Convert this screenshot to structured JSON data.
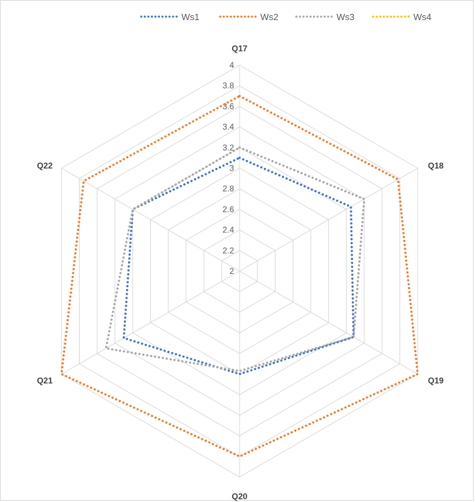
{
  "chart_data": {
    "type": "radar",
    "categories": [
      "Q17",
      "Q18",
      "Q19",
      "Q20",
      "Q21",
      "Q22"
    ],
    "rlim": [
      2,
      4
    ],
    "ticks": [
      "2",
      "2.2",
      "2.4",
      "2.6",
      "2.8",
      "3",
      "3.2",
      "3.4",
      "3.6",
      "3.8",
      "4"
    ],
    "tick_values": [
      2,
      2.2,
      2.4,
      2.6,
      2.8,
      3,
      3.2,
      3.4,
      3.6,
      3.8,
      4
    ],
    "legend_position": "top",
    "grid": true,
    "series": [
      {
        "name": "Ws1",
        "color": "#4472c4",
        "values": [
          3.1,
          3.25,
          3.28,
          3.0,
          3.3,
          3.2
        ]
      },
      {
        "name": "Ws2",
        "color": "#ed7d31",
        "values": [
          3.7,
          3.78,
          4.0,
          3.8,
          4.0,
          3.75
        ]
      },
      {
        "name": "Ws3",
        "color": "#a5a5a5",
        "values": [
          3.2,
          3.4,
          3.28,
          2.97,
          3.5,
          3.2
        ]
      },
      {
        "name": "Ws4",
        "color": "#ffc000",
        "values": [
          null,
          null,
          null,
          null,
          null,
          null
        ]
      }
    ]
  }
}
